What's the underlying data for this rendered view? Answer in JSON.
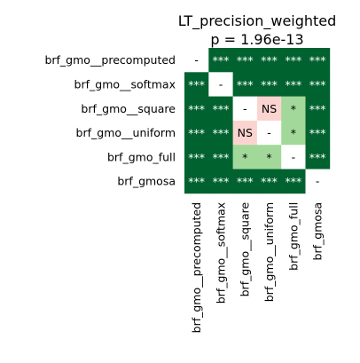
{
  "chart_data": {
    "type": "heatmap",
    "title": "LT_precision_weighted",
    "subtitle": "p = 1.96e-13",
    "rows": [
      "brf_gmo__precomputed",
      "brf_gmo__softmax",
      "brf_gmo__square",
      "brf_gmo__uniform",
      "brf_gmo_full",
      "brf_gmosa"
    ],
    "columns": [
      "brf_gmo__precomputed",
      "brf_gmo__softmax",
      "brf_gmo__square",
      "brf_gmo__uniform",
      "brf_gmo_full",
      "brf_gmosa"
    ],
    "cells": [
      [
        "-",
        "***",
        "***",
        "***",
        "***",
        "***"
      ],
      [
        "***",
        "-",
        "***",
        "***",
        "***",
        "***"
      ],
      [
        "***",
        "***",
        "-",
        "NS",
        "*",
        "***"
      ],
      [
        "***",
        "***",
        "NS",
        "-",
        "*",
        "***"
      ],
      [
        "***",
        "***",
        "*",
        "*",
        "-",
        "***"
      ],
      [
        "***",
        "***",
        "***",
        "***",
        "***",
        "-"
      ]
    ],
    "colors": {
      "***": "#00622f",
      "*": "#a2d99a",
      "NS": "#fbd4d0",
      "-": "#ffffff"
    },
    "text_colors": {
      "***": "#ffffff",
      "*": "#000000",
      "NS": "#000000",
      "-": "#000000"
    }
  }
}
